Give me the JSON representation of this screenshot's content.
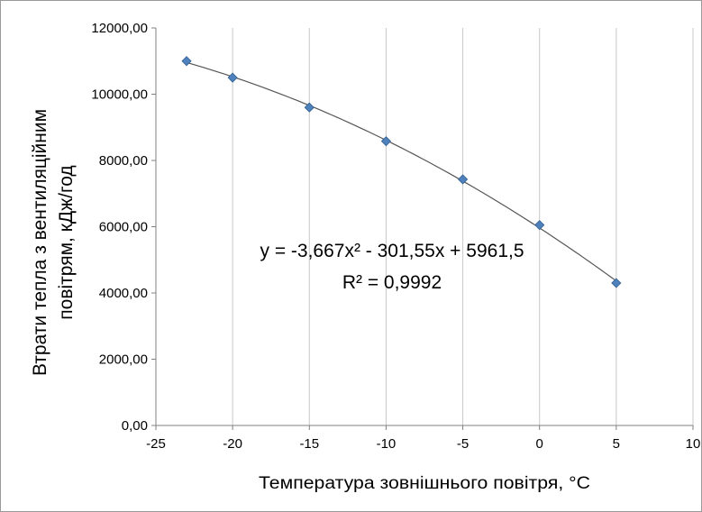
{
  "chart_data": {
    "type": "scatter",
    "title": "",
    "xlabel": "Температура   зовнішнього повітря, °С",
    "ylabel_line1": "Втрати тепла з вентиляційним",
    "ylabel_line2": "повітрям, кДж/год",
    "xlim": [
      -25,
      10
    ],
    "ylim": [
      0,
      12000
    ],
    "x_ticks": [
      "-25",
      "-20",
      "-15",
      "-10",
      "-5",
      "0",
      "5",
      "10"
    ],
    "y_ticks": [
      "0,00",
      "2000,00",
      "4000,00",
      "6000,00",
      "8000,00",
      "10000,00",
      "12000,00"
    ],
    "x_tick_values": [
      -25,
      -20,
      -15,
      -10,
      -5,
      0,
      5,
      10
    ],
    "y_tick_values": [
      0,
      2000,
      4000,
      6000,
      8000,
      10000,
      12000
    ],
    "grid": "vertical",
    "series": [
      {
        "x": [
          -23,
          -20,
          -15,
          -10,
          -5,
          0,
          5
        ],
        "y": [
          11000,
          10500,
          9600,
          8580,
          7430,
          6050,
          4300
        ],
        "marker": "diamond",
        "color": "#4f81bd"
      }
    ],
    "trendline": {
      "type": "polynomial",
      "coefficients": [
        -3.667,
        -301.55,
        5961.5
      ],
      "equation_text": "y = -3,667x² - 301,55x + 5961,5",
      "r2_text": "R² = 0,9992",
      "color": "#555555"
    }
  }
}
